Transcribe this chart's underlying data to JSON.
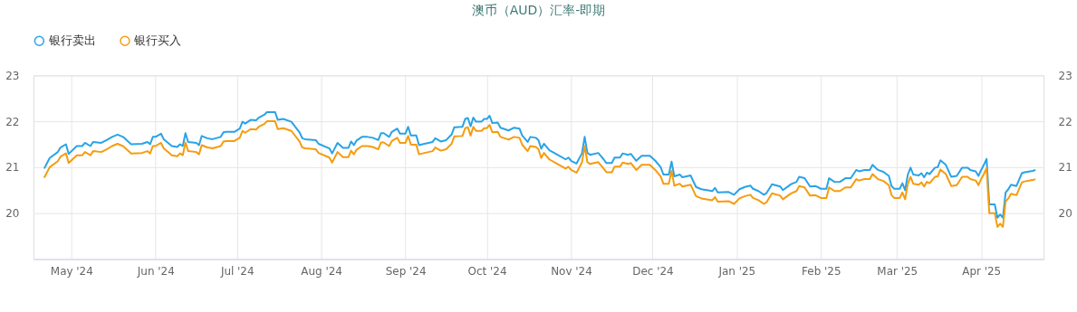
{
  "chart_data": {
    "type": "line",
    "title": "澳币（AUD）汇率-即期",
    "x": [
      "2024-04-21",
      "2024-04-23",
      "2024-04-26",
      "2024-04-27",
      "2024-04-29",
      "2024-04-30",
      "2024-05-03",
      "2024-05-05",
      "2024-05-06",
      "2024-05-08",
      "2024-05-09",
      "2024-05-12",
      "2024-05-14",
      "2024-05-16",
      "2024-05-18",
      "2024-05-20",
      "2024-05-23",
      "2024-05-27",
      "2024-05-29",
      "2024-05-30",
      "2024-05-31",
      "2024-06-01",
      "2024-06-03",
      "2024-06-04",
      "2024-06-07",
      "2024-06-09",
      "2024-06-10",
      "2024-06-11",
      "2024-06-12",
      "2024-06-13",
      "2024-06-16",
      "2024-06-17",
      "2024-06-18",
      "2024-06-20",
      "2024-06-22",
      "2024-06-25",
      "2024-06-26",
      "2024-06-27",
      "2024-06-30",
      "2024-07-02",
      "2024-07-03",
      "2024-07-04",
      "2024-07-06",
      "2024-07-08",
      "2024-07-09",
      "2024-07-11",
      "2024-07-12",
      "2024-07-15",
      "2024-07-16",
      "2024-07-18",
      "2024-07-21",
      "2024-07-24",
      "2024-07-25",
      "2024-07-26",
      "2024-07-30",
      "2024-07-31",
      "2024-08-04",
      "2024-08-05",
      "2024-08-07",
      "2024-08-09",
      "2024-08-11",
      "2024-08-12",
      "2024-08-13",
      "2024-08-14",
      "2024-08-16",
      "2024-08-18",
      "2024-08-20",
      "2024-08-22",
      "2024-08-23",
      "2024-08-24",
      "2024-08-26",
      "2024-08-27",
      "2024-08-29",
      "2024-08-30",
      "2024-09-01",
      "2024-09-02",
      "2024-09-03",
      "2024-09-05",
      "2024-09-06",
      "2024-09-08",
      "2024-09-11",
      "2024-09-12",
      "2024-09-14",
      "2024-09-16",
      "2024-09-18",
      "2024-09-19",
      "2024-09-22",
      "2024-09-23",
      "2024-09-24",
      "2024-09-25",
      "2024-09-26",
      "2024-09-27",
      "2024-09-29",
      "2024-09-30",
      "2024-10-01",
      "2024-10-02",
      "2024-10-03",
      "2024-10-05",
      "2024-10-06",
      "2024-10-09",
      "2024-10-11",
      "2024-10-13",
      "2024-10-14",
      "2024-10-16",
      "2024-10-17",
      "2024-10-19",
      "2024-10-20",
      "2024-10-21",
      "2024-10-22",
      "2024-10-24",
      "2024-10-27",
      "2024-10-30",
      "2024-10-31",
      "2024-11-01",
      "2024-11-03",
      "2024-11-05",
      "2024-11-06",
      "2024-11-07",
      "2024-11-08",
      "2024-11-11",
      "2024-11-12",
      "2024-11-13",
      "2024-11-14",
      "2024-11-16",
      "2024-11-17",
      "2024-11-19",
      "2024-11-20",
      "2024-11-22",
      "2024-11-23",
      "2024-11-25",
      "2024-11-27",
      "2024-11-30",
      "2024-12-02",
      "2024-12-04",
      "2024-12-05",
      "2024-12-07",
      "2024-12-08",
      "2024-12-09",
      "2024-12-11",
      "2024-12-12",
      "2024-12-15",
      "2024-12-17",
      "2024-12-19",
      "2024-12-23",
      "2024-12-24",
      "2024-12-25",
      "2024-12-29",
      "2024-12-31",
      "2025-01-02",
      "2025-01-04",
      "2025-01-06",
      "2025-01-07",
      "2025-01-09",
      "2025-01-11",
      "2025-01-12",
      "2025-01-14",
      "2025-01-17",
      "2025-01-18",
      "2025-01-21",
      "2025-01-23",
      "2025-01-24",
      "2025-01-26",
      "2025-01-28",
      "2025-01-30",
      "2025-02-01",
      "2025-02-03",
      "2025-02-04",
      "2025-02-06",
      "2025-02-08",
      "2025-02-10",
      "2025-02-12",
      "2025-02-14",
      "2025-02-15",
      "2025-02-17",
      "2025-02-19",
      "2025-02-20",
      "2025-02-22",
      "2025-02-24",
      "2025-02-26",
      "2025-02-27",
      "2025-02-28",
      "2025-03-02",
      "2025-03-03",
      "2025-03-04",
      "2025-03-05",
      "2025-03-06",
      "2025-03-07",
      "2025-03-09",
      "2025-03-10",
      "2025-03-11",
      "2025-03-12",
      "2025-03-13",
      "2025-03-15",
      "2025-03-16",
      "2025-03-17",
      "2025-03-19",
      "2025-03-21",
      "2025-03-23",
      "2025-03-25",
      "2025-03-27",
      "2025-03-28",
      "2025-03-30",
      "2025-03-31",
      "2025-04-01",
      "2025-04-02",
      "2025-04-03",
      "2025-04-04",
      "2025-04-06",
      "2025-04-07",
      "2025-04-08",
      "2025-04-09",
      "2025-04-10",
      "2025-04-11",
      "2025-04-12",
      "2025-04-14",
      "2025-04-16",
      "2025-04-17",
      "2025-04-19",
      "2025-04-20",
      "2025-04-21"
    ],
    "series": [
      {
        "name": "银行卖出",
        "color": "#29a3e6",
        "values": [
          20.97,
          21.2,
          21.33,
          21.43,
          21.5,
          21.29,
          21.46,
          21.46,
          21.53,
          21.46,
          21.55,
          21.53,
          21.59,
          21.66,
          21.71,
          21.66,
          21.5,
          21.51,
          21.55,
          21.5,
          21.66,
          21.66,
          21.73,
          21.61,
          21.46,
          21.44,
          21.5,
          21.46,
          21.74,
          21.55,
          21.53,
          21.48,
          21.68,
          21.63,
          21.61,
          21.66,
          21.76,
          21.77,
          21.77,
          21.84,
          21.99,
          21.95,
          22.03,
          22.02,
          22.08,
          22.14,
          22.2,
          22.2,
          22.03,
          22.05,
          21.99,
          21.76,
          21.63,
          21.61,
          21.59,
          21.51,
          21.41,
          21.3,
          21.53,
          21.42,
          21.42,
          21.56,
          21.48,
          21.58,
          21.66,
          21.66,
          21.64,
          21.59,
          21.74,
          21.74,
          21.66,
          21.77,
          21.84,
          21.73,
          21.73,
          21.88,
          21.69,
          21.69,
          21.48,
          21.51,
          21.55,
          21.63,
          21.56,
          21.59,
          21.71,
          21.87,
          21.88,
          22.05,
          22.07,
          21.89,
          22.08,
          21.99,
          21.99,
          22.05,
          22.05,
          22.12,
          21.96,
          21.97,
          21.86,
          21.8,
          21.86,
          21.84,
          21.69,
          21.55,
          21.66,
          21.64,
          21.59,
          21.4,
          21.51,
          21.37,
          21.27,
          21.17,
          21.21,
          21.14,
          21.08,
          21.3,
          21.66,
          21.31,
          21.27,
          21.31,
          21.24,
          21.17,
          21.09,
          21.09,
          21.21,
          21.21,
          21.3,
          21.27,
          21.29,
          21.14,
          21.25,
          21.25,
          21.14,
          21.0,
          20.84,
          20.84,
          21.12,
          20.8,
          20.84,
          20.78,
          20.82,
          20.57,
          20.52,
          20.48,
          20.55,
          20.45,
          20.46,
          20.4,
          20.52,
          20.57,
          20.6,
          20.53,
          20.48,
          20.4,
          20.44,
          20.63,
          20.58,
          20.5,
          20.63,
          20.68,
          20.79,
          20.76,
          20.58,
          20.59,
          20.53,
          20.53,
          20.76,
          20.68,
          20.68,
          20.76,
          20.76,
          20.94,
          20.91,
          20.94,
          20.94,
          21.05,
          20.94,
          20.9,
          20.81,
          20.59,
          20.53,
          20.53,
          20.65,
          20.5,
          20.84,
          20.99,
          20.84,
          20.82,
          20.87,
          20.78,
          20.88,
          20.85,
          20.99,
          21.0,
          21.15,
          21.05,
          20.79,
          20.81,
          20.99,
          20.99,
          20.94,
          20.91,
          20.81,
          20.94,
          21.05,
          21.18,
          20.19,
          20.19,
          19.9,
          19.97,
          19.9,
          20.45,
          20.52,
          20.62,
          20.59,
          20.87,
          20.89,
          20.91,
          20.92,
          20.94
        ]
      },
      {
        "name": "银行买入",
        "color": "#f59c0e",
        "values": [
          20.77,
          21.0,
          21.13,
          21.23,
          21.3,
          21.09,
          21.26,
          21.26,
          21.33,
          21.26,
          21.35,
          21.33,
          21.39,
          21.46,
          21.51,
          21.46,
          21.3,
          21.31,
          21.35,
          21.3,
          21.46,
          21.46,
          21.53,
          21.41,
          21.26,
          21.24,
          21.3,
          21.26,
          21.54,
          21.35,
          21.33,
          21.28,
          21.48,
          21.43,
          21.41,
          21.46,
          21.56,
          21.57,
          21.57,
          21.64,
          21.79,
          21.75,
          21.83,
          21.82,
          21.88,
          21.94,
          22.0,
          22.0,
          21.83,
          21.85,
          21.79,
          21.56,
          21.43,
          21.41,
          21.39,
          21.31,
          21.21,
          21.1,
          21.33,
          21.22,
          21.22,
          21.36,
          21.28,
          21.38,
          21.46,
          21.46,
          21.44,
          21.39,
          21.54,
          21.54,
          21.46,
          21.57,
          21.64,
          21.53,
          21.53,
          21.68,
          21.49,
          21.49,
          21.28,
          21.31,
          21.35,
          21.43,
          21.36,
          21.39,
          21.51,
          21.67,
          21.68,
          21.85,
          21.87,
          21.69,
          21.88,
          21.79,
          21.79,
          21.85,
          21.85,
          21.92,
          21.76,
          21.77,
          21.66,
          21.6,
          21.66,
          21.64,
          21.49,
          21.35,
          21.46,
          21.44,
          21.39,
          21.2,
          21.31,
          21.17,
          21.07,
          20.97,
          21.01,
          20.94,
          20.88,
          21.1,
          21.46,
          21.11,
          21.07,
          21.11,
          21.04,
          20.97,
          20.89,
          20.89,
          21.01,
          21.01,
          21.1,
          21.07,
          21.09,
          20.94,
          21.05,
          21.05,
          20.94,
          20.8,
          20.64,
          20.64,
          20.92,
          20.6,
          20.64,
          20.58,
          20.62,
          20.37,
          20.32,
          20.28,
          20.35,
          20.25,
          20.26,
          20.2,
          20.32,
          20.37,
          20.4,
          20.33,
          20.28,
          20.2,
          20.24,
          20.43,
          20.38,
          20.3,
          20.43,
          20.48,
          20.59,
          20.56,
          20.38,
          20.39,
          20.33,
          20.33,
          20.56,
          20.48,
          20.48,
          20.56,
          20.56,
          20.74,
          20.71,
          20.74,
          20.74,
          20.85,
          20.74,
          20.7,
          20.61,
          20.39,
          20.33,
          20.33,
          20.45,
          20.3,
          20.64,
          20.79,
          20.64,
          20.62,
          20.67,
          20.58,
          20.68,
          20.65,
          20.79,
          20.8,
          20.95,
          20.85,
          20.59,
          20.61,
          20.79,
          20.79,
          20.74,
          20.71,
          20.61,
          20.74,
          20.85,
          20.98,
          20.0,
          20.0,
          19.7,
          19.77,
          19.7,
          20.25,
          20.32,
          20.42,
          20.39,
          20.67,
          20.69,
          20.71,
          20.72,
          20.74
        ]
      }
    ],
    "xlim": [
      "2024-04-17",
      "2025-04-24"
    ],
    "xticks": [
      {
        "value": "2024-05-01",
        "label": "May '24"
      },
      {
        "value": "2024-06-01",
        "label": "Jun '24"
      },
      {
        "value": "2024-07-01",
        "label": "Jul '24"
      },
      {
        "value": "2024-08-01",
        "label": "Aug '24"
      },
      {
        "value": "2024-09-01",
        "label": "Sep '24"
      },
      {
        "value": "2024-10-01",
        "label": "Oct '24"
      },
      {
        "value": "2024-11-01",
        "label": "Nov '24"
      },
      {
        "value": "2024-12-01",
        "label": "Dec '24"
      },
      {
        "value": "2025-01-01",
        "label": "Jan '25"
      },
      {
        "value": "2025-02-01",
        "label": "Feb '25"
      },
      {
        "value": "2025-03-01",
        "label": "Mar '25"
      },
      {
        "value": "2025-04-01",
        "label": "Apr '25"
      }
    ],
    "ylim": [
      19,
      23
    ],
    "yticks": [
      20,
      21,
      22,
      23
    ],
    "y2lim": [
      19,
      23
    ],
    "y2ticks": [
      20,
      21,
      22,
      23
    ],
    "grid": true,
    "legend": "top left",
    "line_style": "solid"
  }
}
